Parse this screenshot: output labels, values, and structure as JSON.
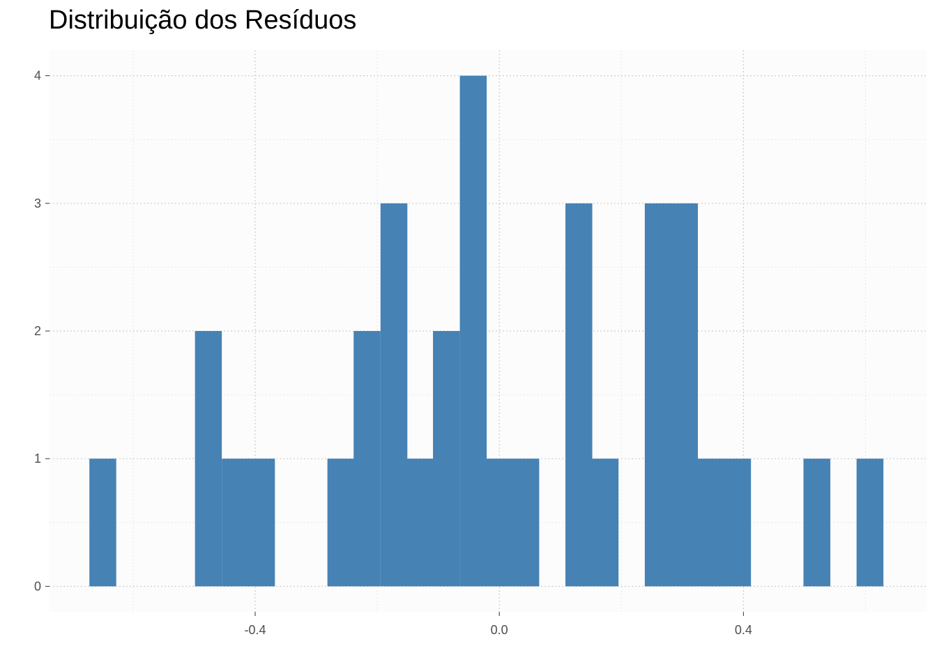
{
  "chart_data": {
    "type": "bar",
    "title": "Distribuição dos Resíduos",
    "xlabel": "",
    "ylabel": "",
    "bar_color": "#4682b4",
    "panel_background": "#fcfcfc",
    "grid": true,
    "grid_style": "dotted",
    "xlim": [
      -0.737,
      0.7
    ],
    "ylim": [
      -0.2,
      4.2
    ],
    "x_ticks": [
      -0.4,
      0.0,
      0.4
    ],
    "x_tick_labels": [
      "-0.4",
      "0.0",
      "0.4"
    ],
    "y_ticks": [
      0,
      1,
      2,
      3,
      4
    ],
    "y_tick_labels": [
      "0",
      "1",
      "2",
      "3",
      "4"
    ],
    "binwidth": 0.0433,
    "bin_centers": [
      -0.65,
      -0.607,
      -0.563,
      -0.52,
      -0.477,
      -0.433,
      -0.39,
      -0.347,
      -0.303,
      -0.26,
      -0.217,
      -0.173,
      -0.13,
      -0.087,
      -0.043,
      0.0,
      0.043,
      0.087,
      0.13,
      0.173,
      0.217,
      0.26,
      0.303,
      0.347,
      0.39,
      0.433,
      0.477,
      0.52,
      0.563,
      0.607
    ],
    "counts": [
      1,
      0,
      0,
      0,
      2,
      1,
      1,
      0,
      0,
      1,
      2,
      3,
      1,
      2,
      4,
      1,
      1,
      0,
      3,
      1,
      0,
      3,
      3,
      1,
      1,
      0,
      0,
      1,
      0,
      1
    ]
  }
}
